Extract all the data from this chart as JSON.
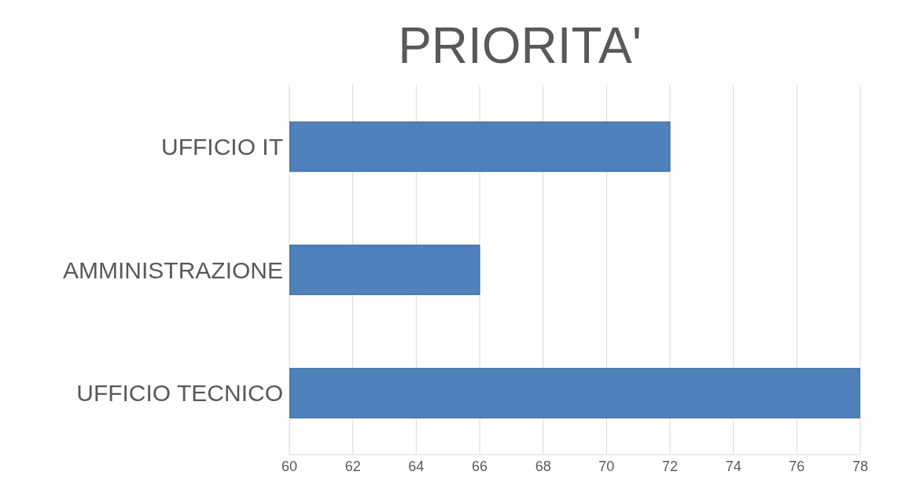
{
  "chart_data": {
    "type": "bar",
    "title": "PRIORITA'",
    "orientation": "horizontal",
    "categories": [
      "UFFICIO IT",
      "AMMINISTRAZIONE",
      "UFFICIO TECNICO"
    ],
    "values": [
      72,
      66,
      78
    ],
    "color": "#4f81bd",
    "xlim": [
      60,
      78
    ],
    "xticks": [
      60,
      62,
      64,
      66,
      68,
      70,
      72,
      74,
      76,
      78
    ],
    "grid": "x"
  }
}
